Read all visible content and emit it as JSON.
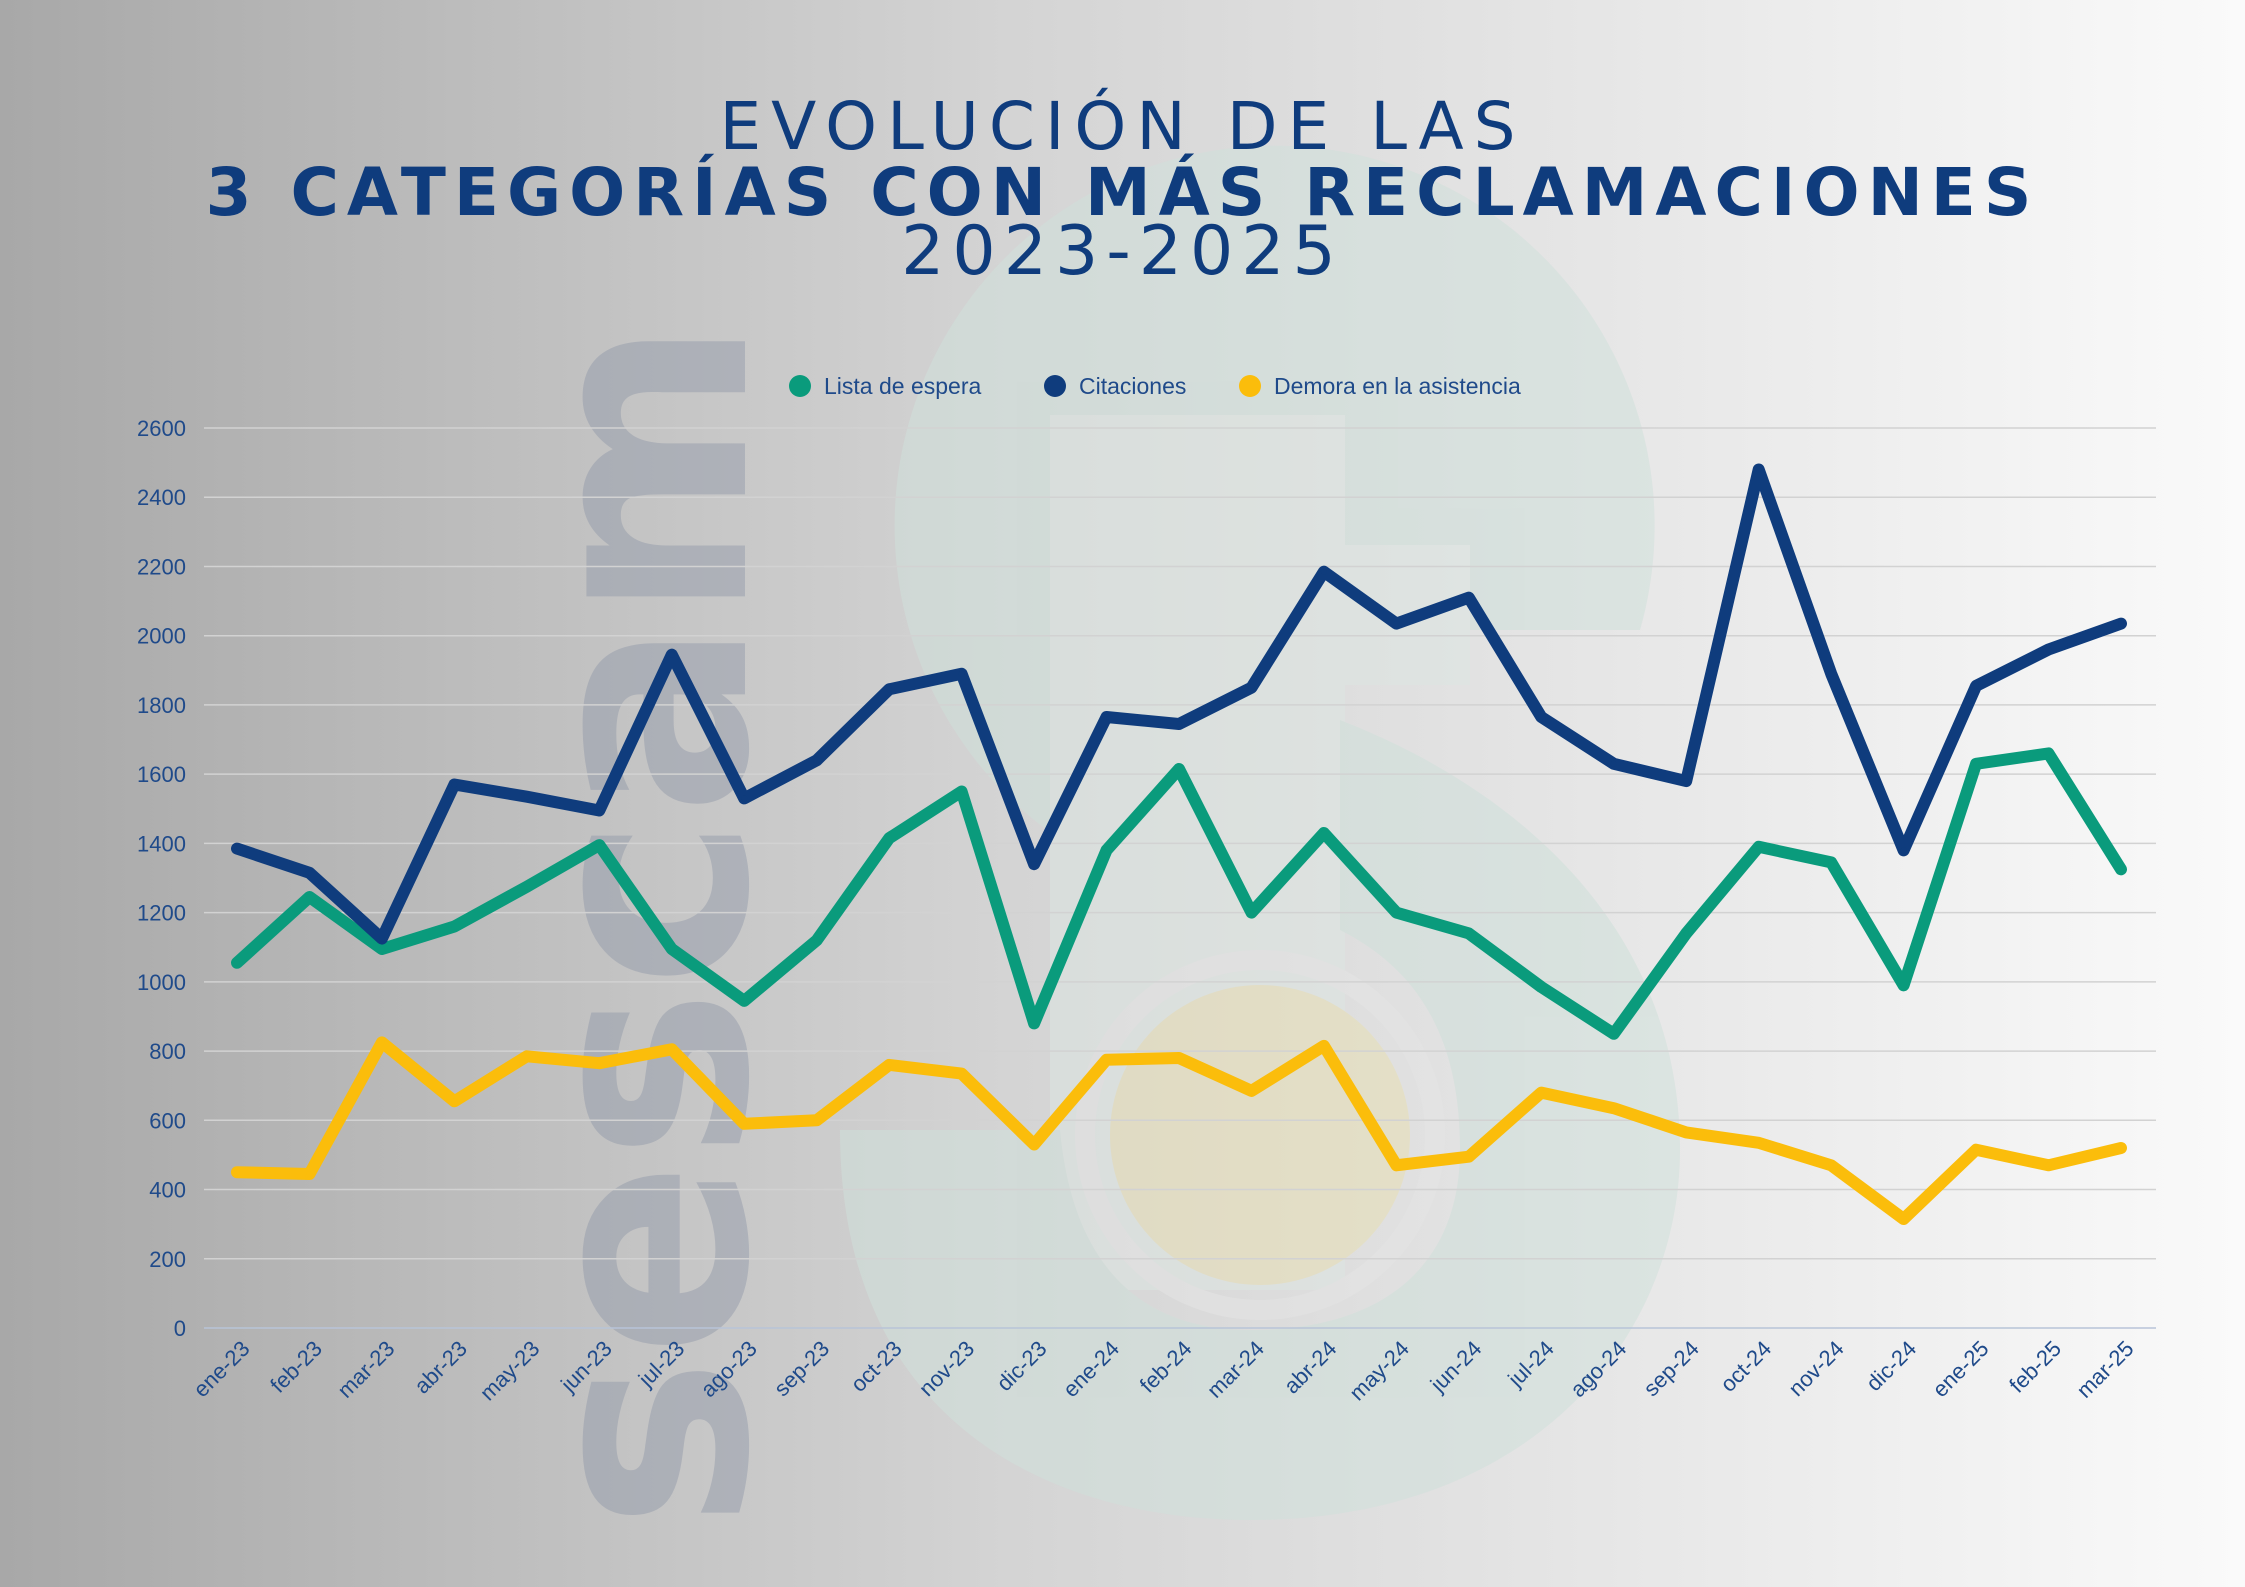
{
  "title": {
    "line1": "EVOLUCIÓN DE LAS",
    "line2": "3 CATEGORÍAS CON MÁS RECLAMACIONES",
    "line3": "2023-2025"
  },
  "watermark": {
    "text": "sescam"
  },
  "colors": {
    "title": "#0f3c7d",
    "axis_text": "#1f4a8a",
    "grid": "#d2d2d2"
  },
  "chart_data": {
    "type": "line",
    "categories": [
      "ene-23",
      "feb-23",
      "mar-23",
      "abr-23",
      "may-23",
      "jun-23",
      "jul-23",
      "ago-23",
      "sep-23",
      "oct-23",
      "nov-23",
      "dic-23",
      "ene-24",
      "feb-24",
      "mar-24",
      "abr-24",
      "may-24",
      "jun-24",
      "jul-24",
      "ago-24",
      "sep-24",
      "oct-24",
      "nov-24",
      "dic-24",
      "ene-25",
      "feb-25",
      "mar-25"
    ],
    "ylim": [
      0,
      2600
    ],
    "yticks": [
      0,
      200,
      400,
      600,
      800,
      1000,
      1200,
      1400,
      1600,
      1800,
      2000,
      2200,
      2400,
      2600
    ],
    "grid": true,
    "legend_position": "top",
    "series": [
      {
        "name": "Lista de espera",
        "color": "#0a9b7c",
        "values": [
          1055,
          1245,
          1095,
          1160,
          1275,
          1395,
          1095,
          945,
          1120,
          1415,
          1550,
          880,
          1380,
          1615,
          1200,
          1430,
          1200,
          1140,
          985,
          850,
          1140,
          1390,
          1345,
          990,
          1630,
          1660,
          1325
        ]
      },
      {
        "name": "Citaciones",
        "color": "#0f3c7d",
        "values": [
          1385,
          1315,
          1125,
          1570,
          1535,
          1495,
          1945,
          1530,
          1640,
          1845,
          1890,
          1340,
          1765,
          1745,
          1850,
          2185,
          2035,
          2110,
          1765,
          1630,
          1580,
          2480,
          1890,
          1380,
          1855,
          1960,
          2035
        ]
      },
      {
        "name": "Demora en la asistencia",
        "color": "#fbbd0b",
        "values": [
          450,
          445,
          825,
          655,
          785,
          765,
          805,
          590,
          600,
          760,
          735,
          530,
          775,
          780,
          685,
          815,
          470,
          495,
          680,
          635,
          565,
          535,
          470,
          315,
          515,
          470,
          520
        ]
      }
    ]
  }
}
